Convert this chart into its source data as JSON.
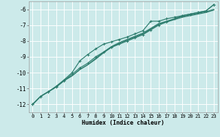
{
  "title": "",
  "xlabel": "Humidex (Indice chaleur)",
  "ylabel": "",
  "background_color": "#cceaea",
  "grid_color": "#ffffff",
  "line_color": "#2e7d6e",
  "xlim": [
    -0.5,
    23.5
  ],
  "ylim": [
    -12.5,
    -5.5
  ],
  "yticks": [
    -12,
    -11,
    -10,
    -9,
    -8,
    -7,
    -6
  ],
  "xticks": [
    0,
    1,
    2,
    3,
    4,
    5,
    6,
    7,
    8,
    9,
    10,
    11,
    12,
    13,
    14,
    15,
    16,
    17,
    18,
    19,
    20,
    21,
    22,
    23
  ],
  "series": [
    {
      "x": [
        0,
        1,
        2,
        3,
        4,
        5,
        6,
        7,
        8,
        9,
        10,
        11,
        12,
        13,
        14,
        15,
        16,
        17,
        18,
        19,
        20,
        21,
        22,
        23
      ],
      "y": [
        -12.0,
        -11.5,
        -11.2,
        -10.85,
        -10.45,
        -10.0,
        -9.25,
        -8.85,
        -8.5,
        -8.2,
        -8.05,
        -7.9,
        -7.75,
        -7.55,
        -7.35,
        -6.75,
        -6.75,
        -6.6,
        -6.5,
        -6.4,
        -6.3,
        -6.2,
        -6.1,
        -5.7
      ],
      "marker": "+"
    },
    {
      "x": [
        0,
        1,
        2,
        3,
        4,
        5,
        6,
        7,
        8,
        9,
        10,
        11,
        12,
        13,
        14,
        15,
        16,
        17,
        18,
        19,
        20,
        21,
        22,
        23
      ],
      "y": [
        -12.0,
        -11.5,
        -11.2,
        -10.9,
        -10.5,
        -10.2,
        -9.8,
        -9.5,
        -9.1,
        -8.7,
        -8.35,
        -8.1,
        -7.9,
        -7.7,
        -7.5,
        -7.2,
        -6.9,
        -6.75,
        -6.6,
        -6.45,
        -6.35,
        -6.25,
        -6.15,
        -6.0
      ],
      "marker": null
    },
    {
      "x": [
        0,
        1,
        2,
        3,
        4,
        5,
        6,
        7,
        8,
        9,
        10,
        11,
        12,
        13,
        14,
        15,
        16,
        17,
        18,
        19,
        20,
        21,
        22,
        23
      ],
      "y": [
        -12.0,
        -11.5,
        -11.2,
        -10.9,
        -10.5,
        -10.2,
        -9.8,
        -9.5,
        -9.15,
        -8.75,
        -8.4,
        -8.15,
        -7.95,
        -7.75,
        -7.55,
        -7.25,
        -6.95,
        -6.8,
        -6.65,
        -6.5,
        -6.4,
        -6.3,
        -6.2,
        -6.05
      ],
      "marker": null
    },
    {
      "x": [
        0,
        1,
        2,
        3,
        4,
        5,
        6,
        7,
        8,
        9,
        10,
        11,
        12,
        13,
        14,
        15,
        16,
        17,
        18,
        19,
        20,
        21,
        22,
        23
      ],
      "y": [
        -12.0,
        -11.5,
        -11.2,
        -10.9,
        -10.5,
        -10.1,
        -9.7,
        -9.4,
        -9.0,
        -8.7,
        -8.4,
        -8.2,
        -8.0,
        -7.8,
        -7.6,
        -7.3,
        -7.0,
        -6.8,
        -6.6,
        -6.4,
        -6.3,
        -6.2,
        -6.1,
        -5.7
      ],
      "marker": "+"
    }
  ],
  "xlabel_fontsize": 6.0,
  "tick_fontsize": 5.2,
  "ytick_fontsize": 5.8
}
